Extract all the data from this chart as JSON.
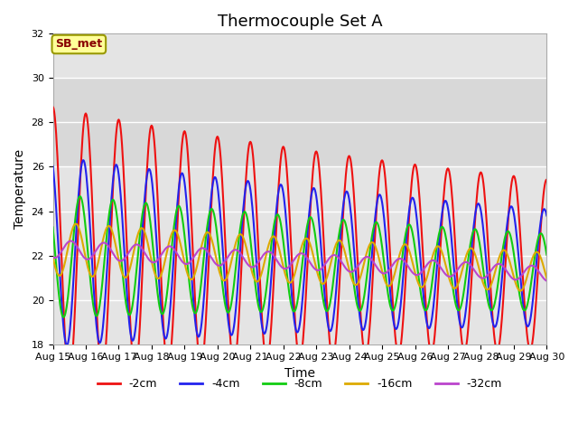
{
  "title": "Thermocouple Set A",
  "xlabel": "Time",
  "ylabel": "Temperature",
  "ylim": [
    18,
    32
  ],
  "xlim": [
    0,
    15
  ],
  "yticks": [
    18,
    20,
    22,
    24,
    26,
    28,
    30,
    32
  ],
  "xtick_labels": [
    "Aug 15",
    "Aug 16",
    "Aug 17",
    "Aug 18",
    "Aug 19",
    "Aug 20",
    "Aug 21",
    "Aug 22",
    "Aug 23",
    "Aug 24",
    "Aug 25",
    "Aug 26",
    "Aug 27",
    "Aug 28",
    "Aug 29",
    "Aug 30"
  ],
  "series": {
    "-2cm": {
      "color": "#ee1111",
      "lw": 1.5
    },
    "-4cm": {
      "color": "#2222ee",
      "lw": 1.5
    },
    "-8cm": {
      "color": "#11cc11",
      "lw": 1.5
    },
    "-16cm": {
      "color": "#ddaa00",
      "lw": 1.5
    },
    "-32cm": {
      "color": "#bb44cc",
      "lw": 1.5
    }
  },
  "annotation_text": "SB_met",
  "annotation_text_color": "#880000",
  "annotation_bg": "#ffff99",
  "annotation_border": "#999900",
  "shaded_ymin": 26,
  "shaded_ymax": 30,
  "shaded_color": "#d8d8d8",
  "background_inner": "#e4e4e4",
  "background_outer": "#ffffff",
  "title_fontsize": 13,
  "axis_label_fontsize": 10,
  "tick_fontsize": 8
}
